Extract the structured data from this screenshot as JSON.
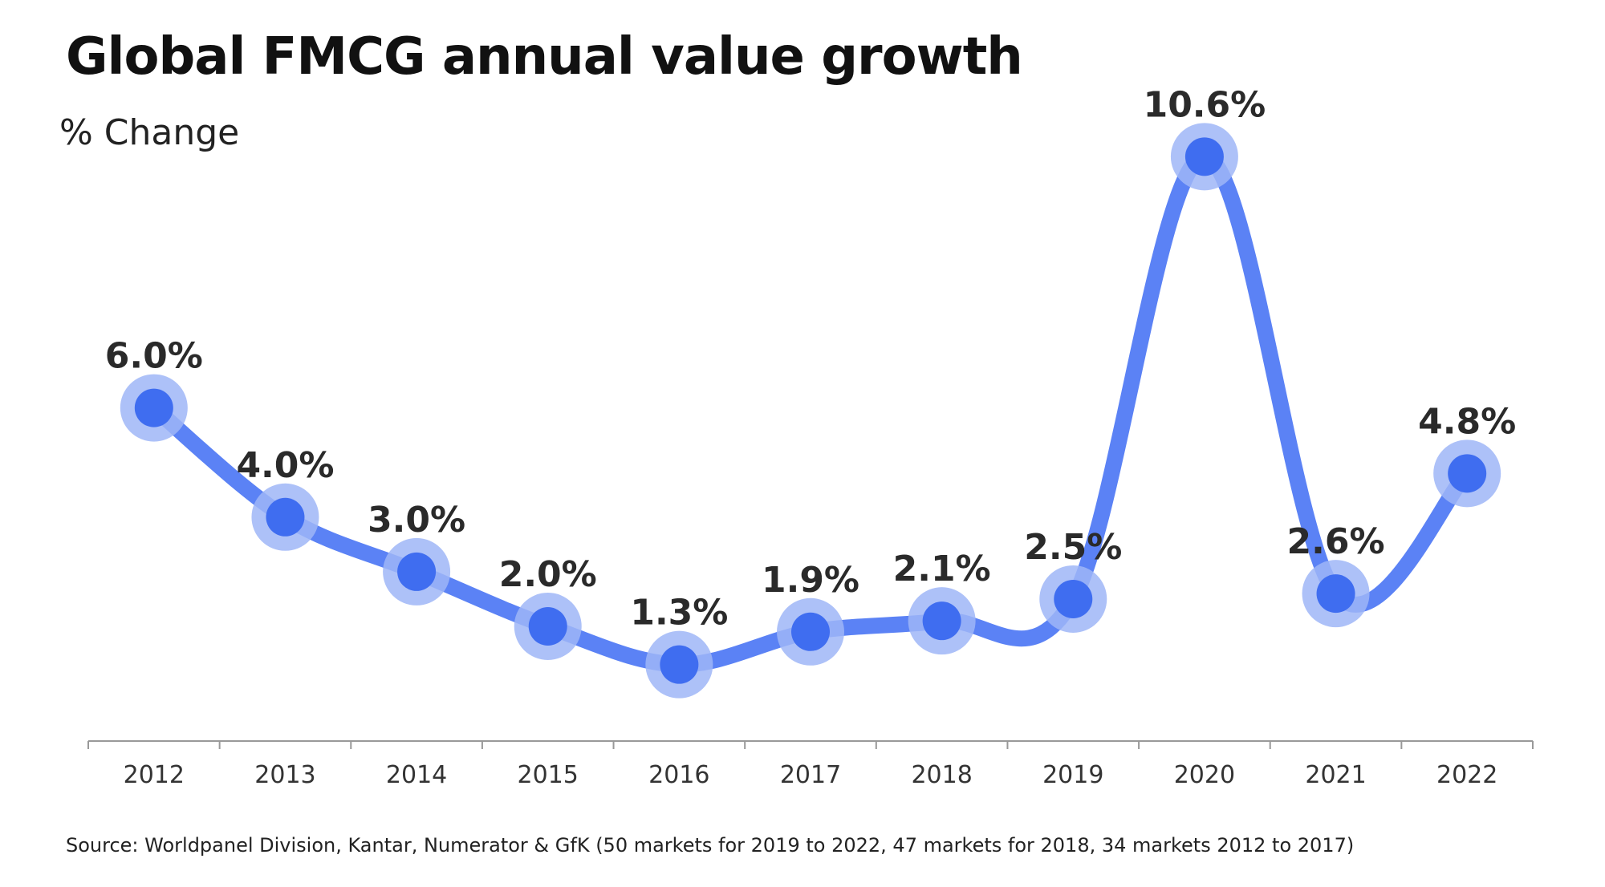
{
  "title": "Global FMCG annual value growth",
  "subtitle": "% Change",
  "source": "Source: Worldpanel Division, Kantar, Numerator & GfK (50 markets for 2019 to 2022, 47 markets for 2018, 34 markets 2012 to 2017)",
  "colors": {
    "line": "#5b82f5",
    "point": "#3f6df0",
    "halo": "#9fb6f7",
    "axis": "#999999"
  },
  "chart_data": {
    "type": "line",
    "categories": [
      "2012",
      "2013",
      "2014",
      "2015",
      "2016",
      "2017",
      "2018",
      "2019",
      "2020",
      "2021",
      "2022"
    ],
    "series": [
      {
        "values": [
          6.0,
          4.0,
          3.0,
          2.0,
          1.3,
          1.9,
          2.1,
          2.5,
          10.6,
          2.6,
          4.8
        ],
        "labels": [
          "6.0%",
          "4.0%",
          "3.0%",
          "2.0%",
          "1.3%",
          "1.9%",
          "2.1%",
          "2.5%",
          "10.6%",
          "2.6%",
          "4.8%"
        ]
      }
    ],
    "ylim": [
      -0.1,
      12
    ],
    "grid": false,
    "legend": "none",
    "smooth": true
  }
}
